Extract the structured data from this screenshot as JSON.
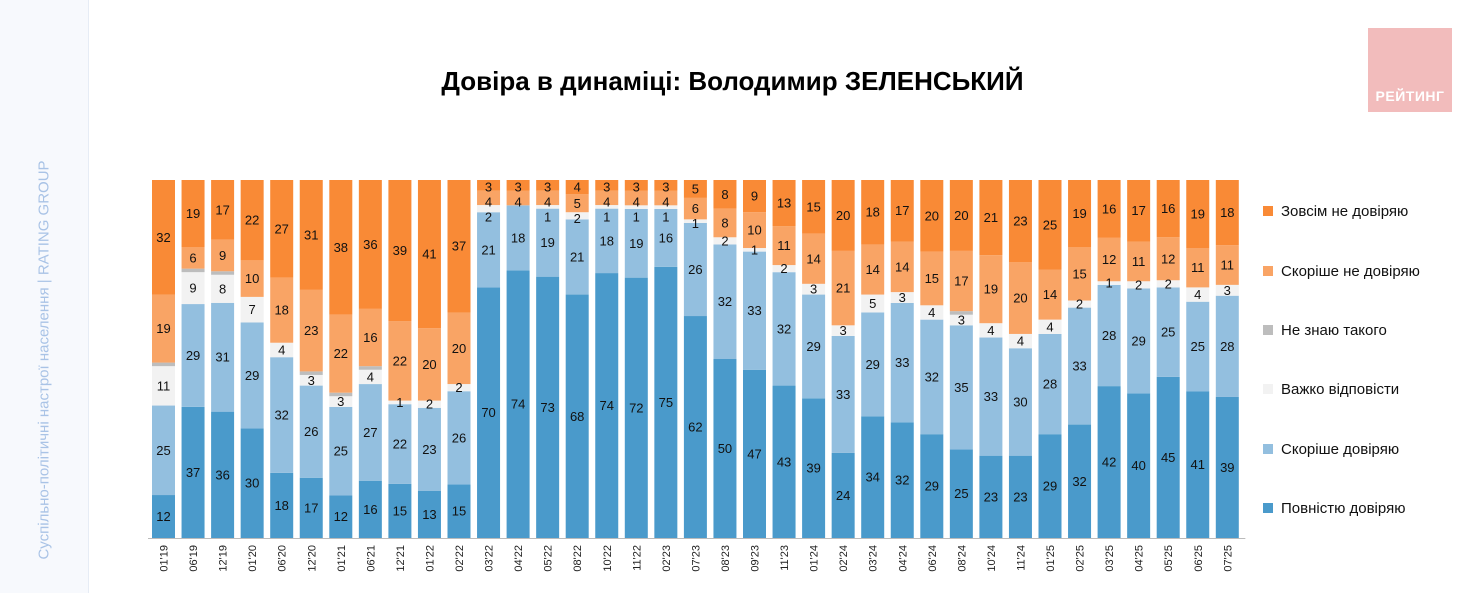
{
  "side_text": "Суспільно-політичні настрої населення | RATING GROUP",
  "logo_text": "РЕЙТИНГ",
  "chart_data": {
    "type": "bar",
    "stacked": true,
    "title": "Довіра в динаміці: Володимир ЗЕЛЕНСЬКИЙ",
    "xlabel": "",
    "ylabel": "",
    "ylim": [
      0,
      100
    ],
    "legend_position": "right",
    "categories": [
      "01'19",
      "06'19",
      "12'19",
      "01'20",
      "06'20",
      "12'20",
      "01'21",
      "06'21",
      "12'21",
      "01'22",
      "02'22",
      "03'22",
      "04'22",
      "05'22",
      "08'22",
      "10'22",
      "11'22",
      "02'23",
      "07'23",
      "08'23",
      "09'23",
      "11'23",
      "01'24",
      "02'24",
      "03'24",
      "04'24",
      "06'24",
      "08'24",
      "10'24",
      "11'24",
      "01'25",
      "02'25",
      "03'25",
      "04'25",
      "05'25",
      "06'25",
      "07'25"
    ],
    "series": [
      {
        "name": "Повністю довіряю",
        "color": "#4a9acb",
        "labeled": true,
        "values": [
          12,
          37,
          36,
          30,
          18,
          17,
          12,
          16,
          15,
          13,
          15,
          70,
          74,
          73,
          68,
          74,
          72,
          75,
          62,
          50,
          47,
          43,
          39,
          24,
          34,
          32,
          29,
          25,
          23,
          23,
          29,
          32,
          42,
          40,
          45,
          41,
          39
        ]
      },
      {
        "name": "Скоріше довіряю",
        "color": "#93bfdf",
        "labeled": true,
        "values": [
          25,
          29,
          31,
          29,
          32,
          26,
          25,
          27,
          22,
          23,
          26,
          21,
          18,
          19,
          21,
          18,
          19,
          16,
          26,
          32,
          33,
          32,
          29,
          33,
          29,
          33,
          32,
          35,
          33,
          30,
          28,
          33,
          28,
          29,
          25,
          25,
          28
        ]
      },
      {
        "name": "Важко відповісти",
        "color": "#f2f2f2",
        "labeled": true,
        "values": [
          11,
          9,
          8,
          7,
          4,
          3,
          3,
          4,
          1,
          2,
          2,
          2,
          0,
          1,
          2,
          1,
          1,
          1,
          1,
          2,
          1,
          2,
          3,
          3,
          5,
          3,
          4,
          3,
          4,
          4,
          4,
          2,
          1,
          2,
          2,
          4,
          3
        ]
      },
      {
        "name": "Не знаю такого",
        "color": "#bdbdbd",
        "labeled": false,
        "values": [
          1,
          1,
          1,
          0,
          0,
          1,
          1,
          1,
          0,
          0,
          0,
          0,
          0,
          0,
          0,
          0,
          0,
          0,
          0,
          0,
          0,
          0,
          0,
          0,
          0,
          0,
          0,
          1,
          0,
          0,
          0,
          0,
          0,
          0,
          0,
          0,
          0
        ]
      },
      {
        "name": "Скоріше не довіряю",
        "color": "#f9a465",
        "labeled": true,
        "values": [
          19,
          6,
          9,
          10,
          18,
          23,
          22,
          16,
          22,
          20,
          20,
          4,
          4,
          4,
          5,
          4,
          4,
          4,
          6,
          8,
          10,
          11,
          14,
          21,
          14,
          14,
          15,
          17,
          19,
          20,
          14,
          15,
          12,
          11,
          12,
          11,
          11
        ]
      },
      {
        "name": "Зовсім не довіряю",
        "color": "#f98a36",
        "labeled": true,
        "values": [
          32,
          19,
          17,
          22,
          27,
          31,
          38,
          36,
          39,
          41,
          37,
          3,
          3,
          3,
          4,
          3,
          3,
          3,
          5,
          8,
          9,
          13,
          15,
          20,
          18,
          17,
          20,
          20,
          21,
          23,
          25,
          19,
          16,
          17,
          16,
          19,
          18
        ]
      }
    ]
  }
}
